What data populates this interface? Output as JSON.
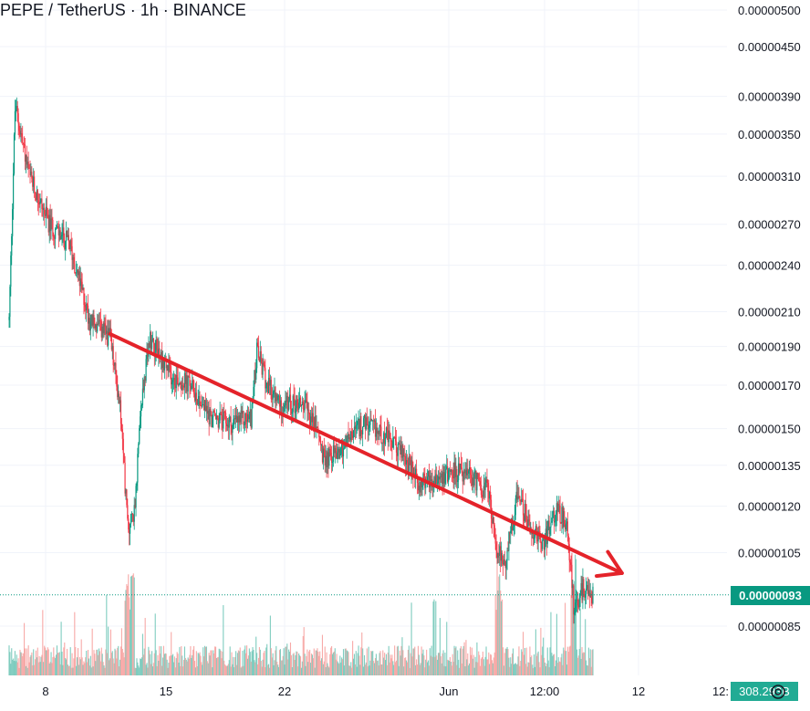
{
  "header": {
    "title": "PEPE / TetherUS · 1h · BINANCE"
  },
  "price_badge": "0.00000093",
  "volume_badge": "308.293B",
  "settings_icon": "settings-gear-icon",
  "colors": {
    "up": "#089981",
    "down": "#f23645",
    "up_volume": "#7fccbf",
    "down_volume": "#f7a9a7",
    "trend_arrow": "#e4232a",
    "grid": "#f0f3fa"
  },
  "chart_data": {
    "type": "candlestick",
    "title": "PEPE / TetherUS · 1h · BINANCE",
    "y_scale": "log",
    "y_ticks": [
      "0.00000500",
      "0.00000450",
      "0.00000390",
      "0.00000350",
      "0.00000310",
      "0.00000270",
      "0.00000240",
      "0.00000210",
      "0.00000190",
      "0.00000170",
      "0.00000150",
      "0.00000135",
      "0.00000120",
      "0.00000105",
      "0.00000085"
    ],
    "y_tick_values": [
      5e-06,
      4.5e-06,
      3.9e-06,
      3.5e-06,
      3.1e-06,
      2.7e-06,
      2.4e-06,
      2.1e-06,
      1.9e-06,
      1.7e-06,
      1.5e-06,
      1.35e-06,
      1.2e-06,
      1.05e-06,
      8.5e-07
    ],
    "x_ticks": [
      "8",
      "15",
      "22",
      "Jun",
      "12:00",
      "12",
      "12:"
    ],
    "last_price": "0.00000093",
    "last_volume": "308.293B",
    "price_path": [
      {
        "t": 0.0,
        "p": 2.05e-06
      },
      {
        "t": 0.3,
        "p": 3.8e-06
      },
      {
        "t": 1.0,
        "p": 3.1e-06
      },
      {
        "t": 2.0,
        "p": 2.7e-06
      },
      {
        "t": 3.0,
        "p": 2.55e-06
      },
      {
        "t": 4.0,
        "p": 2.05e-06
      },
      {
        "t": 5.0,
        "p": 1.95e-06
      },
      {
        "t": 5.5,
        "p": 1.6e-06
      },
      {
        "t": 5.9,
        "p": 1.12e-06
      },
      {
        "t": 6.2,
        "p": 1.18e-06
      },
      {
        "t": 6.6,
        "p": 1.65e-06
      },
      {
        "t": 7.0,
        "p": 1.95e-06
      },
      {
        "t": 7.5,
        "p": 1.85e-06
      },
      {
        "t": 8.0,
        "p": 1.75e-06
      },
      {
        "t": 9.0,
        "p": 1.7e-06
      },
      {
        "t": 10.0,
        "p": 1.55e-06
      },
      {
        "t": 11.0,
        "p": 1.52e-06
      },
      {
        "t": 12.0,
        "p": 1.55e-06
      },
      {
        "t": 12.3,
        "p": 1.88e-06
      },
      {
        "t": 12.8,
        "p": 1.7e-06
      },
      {
        "t": 13.5,
        "p": 1.6e-06
      },
      {
        "t": 14.5,
        "p": 1.62e-06
      },
      {
        "t": 15.3,
        "p": 1.5e-06
      },
      {
        "t": 15.6,
        "p": 1.37e-06
      },
      {
        "t": 16.5,
        "p": 1.42e-06
      },
      {
        "t": 17.5,
        "p": 1.52e-06
      },
      {
        "t": 18.5,
        "p": 1.48e-06
      },
      {
        "t": 19.5,
        "p": 1.4e-06
      },
      {
        "t": 20.3,
        "p": 1.28e-06
      },
      {
        "t": 21.2,
        "p": 1.31e-06
      },
      {
        "t": 22.0,
        "p": 1.33e-06
      },
      {
        "t": 23.0,
        "p": 1.3e-06
      },
      {
        "t": 23.8,
        "p": 1.25e-06
      },
      {
        "t": 24.2,
        "p": 1.05e-06
      },
      {
        "t": 24.6,
        "p": 1.02e-06
      },
      {
        "t": 25.2,
        "p": 1.24e-06
      },
      {
        "t": 25.8,
        "p": 1.14e-06
      },
      {
        "t": 26.5,
        "p": 1.08e-06
      },
      {
        "t": 27.2,
        "p": 1.2e-06
      },
      {
        "t": 27.7,
        "p": 1.12e-06
      },
      {
        "t": 28.0,
        "p": 9e-07
      },
      {
        "t": 28.5,
        "p": 9.5e-07
      },
      {
        "t": 29.0,
        "p": 9.3e-07
      }
    ],
    "trend_line": {
      "from": {
        "t": 5.0,
        "p": 1.97e-06
      },
      "to": {
        "t": 30.4,
        "p": 9.9e-07
      }
    }
  }
}
